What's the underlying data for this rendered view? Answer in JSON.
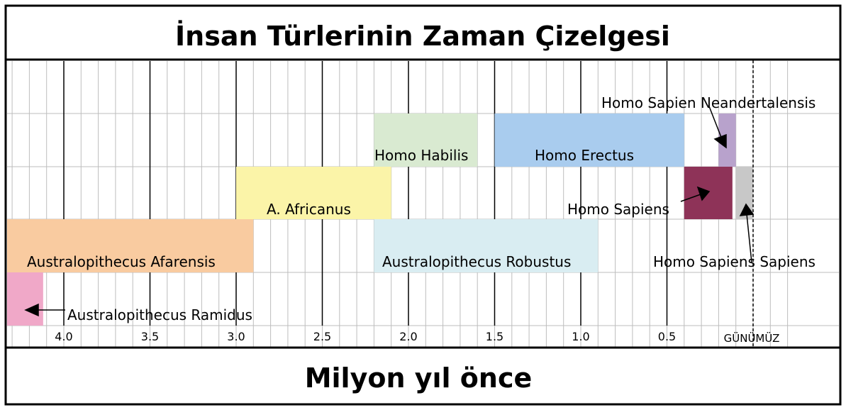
{
  "title": "İnsan Türlerinin Zaman Çizelgesi",
  "footer": "Milyon yıl önce",
  "today_label": "GÜNÜMÜZ",
  "chart_data": {
    "type": "timeline",
    "x_unit": "million years ago",
    "ticks": [
      "4.0",
      "3.5",
      "3.0",
      "2.5",
      "2.0",
      "1.5",
      "1.0",
      "0.5"
    ],
    "species": [
      {
        "name": "Australopithecus Ramidus",
        "start": 4.35,
        "end": 4.12,
        "row": 5,
        "color": "#f0a8c8"
      },
      {
        "name": "Australopithecus Afarensis",
        "start": 4.35,
        "end": 2.9,
        "row": 4,
        "color": "#f9cba0"
      },
      {
        "name": "A. Africanus",
        "start": 3.0,
        "end": 2.1,
        "row": 3,
        "color": "#fbf4a8"
      },
      {
        "name": "Australopithecus Robustus",
        "start": 2.2,
        "end": 0.9,
        "row": 4,
        "color": "#d9edf2"
      },
      {
        "name": "Homo Habilis",
        "start": 2.2,
        "end": 1.6,
        "row": 2,
        "color": "#d9ead1"
      },
      {
        "name": "Homo Erectus",
        "start": 1.5,
        "end": 0.4,
        "row": 2,
        "color": "#a9ccee"
      },
      {
        "name": "Homo Sapiens",
        "start": 0.4,
        "end": 0.12,
        "row": 3,
        "color": "#8e3358"
      },
      {
        "name": "Homo Sapien Neandertalensis",
        "start": 0.2,
        "end": 0.1,
        "row": 2,
        "color": "#b8a2cc"
      },
      {
        "name": "Homo Sapiens Sapiens",
        "start": 0.1,
        "end": 0.0,
        "row": 3,
        "color": "#c8c8c8"
      }
    ],
    "colors": {
      "ramidus": "#f0a8c8",
      "afarensis": "#f9cba0",
      "africanus": "#fbf4a8",
      "robustus": "#d9edf2",
      "habilis": "#d9ead1",
      "erectus": "#a9ccee",
      "sapiens": "#8e3358",
      "neandertalensis": "#b8a2cc",
      "sapiens_sapiens": "#c8c8c8"
    }
  }
}
